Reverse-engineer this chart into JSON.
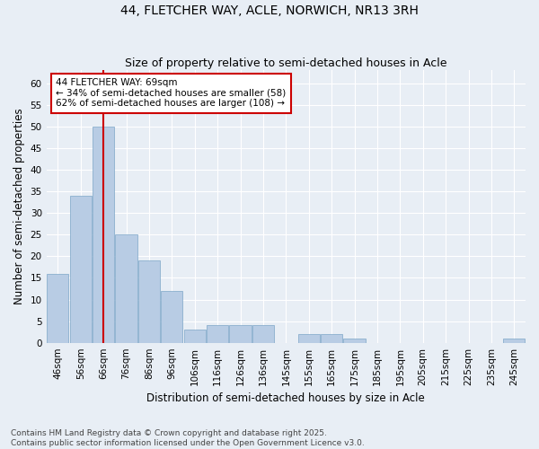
{
  "title": "44, FLETCHER WAY, ACLE, NORWICH, NR13 3RH",
  "subtitle": "Size of property relative to semi-detached houses in Acle",
  "xlabel": "Distribution of semi-detached houses by size in Acle",
  "ylabel": "Number of semi-detached properties",
  "categories": [
    "46sqm",
    "56sqm",
    "66sqm",
    "76sqm",
    "86sqm",
    "96sqm",
    "106sqm",
    "116sqm",
    "126sqm",
    "136sqm",
    "145sqm",
    "155sqm",
    "165sqm",
    "175sqm",
    "185sqm",
    "195sqm",
    "205sqm",
    "215sqm",
    "225sqm",
    "235sqm",
    "245sqm"
  ],
  "values": [
    16,
    34,
    50,
    25,
    19,
    12,
    3,
    4,
    4,
    4,
    0,
    2,
    2,
    1,
    0,
    0,
    0,
    0,
    0,
    0,
    1
  ],
  "bar_color": "#b8cce4",
  "bar_edge_color": "#7da6c8",
  "background_color": "#e8eef5",
  "red_line_x": 2.0,
  "annotation_text": "44 FLETCHER WAY: 69sqm\n← 34% of semi-detached houses are smaller (58)\n62% of semi-detached houses are larger (108) →",
  "annotation_box_color": "#ffffff",
  "annotation_box_edge_color": "#cc0000",
  "ylim": [
    0,
    63
  ],
  "yticks": [
    0,
    5,
    10,
    15,
    20,
    25,
    30,
    35,
    40,
    45,
    50,
    55,
    60
  ],
  "footnote": "Contains HM Land Registry data © Crown copyright and database right 2025.\nContains public sector information licensed under the Open Government Licence v3.0.",
  "title_fontsize": 10,
  "subtitle_fontsize": 9,
  "axis_label_fontsize": 8.5,
  "tick_fontsize": 7.5,
  "annotation_fontsize": 7.5,
  "footnote_fontsize": 6.5
}
